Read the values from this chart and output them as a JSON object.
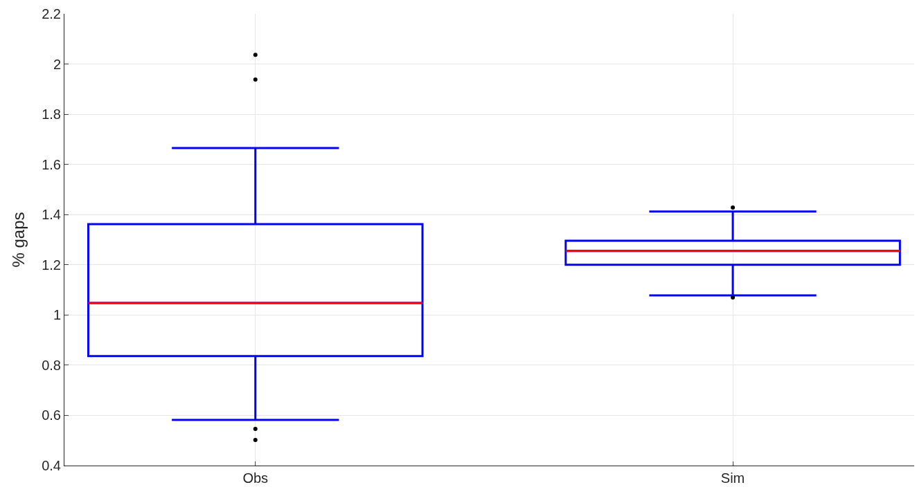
{
  "chart_data": {
    "type": "box",
    "ylabel": "% gaps",
    "categories": [
      "Obs",
      "Sim"
    ],
    "series": [
      {
        "color": "#0000ff",
        "boxes": [
          {
            "low": 0.582,
            "q1": 0.836,
            "median": 1.048,
            "q3": 1.362,
            "high": 1.665,
            "outliers": [
              2.037,
              1.938,
              0.546,
              0.502
            ]
          },
          {
            "low": 1.078,
            "q1": 1.2,
            "median": 1.255,
            "q3": 1.296,
            "high": 1.412,
            "outliers": [
              1.428,
              1.07
            ]
          }
        ]
      }
    ],
    "ylim": [
      0.4,
      2.2
    ],
    "yticks": [
      0.4,
      0.6,
      0.8,
      1,
      1.2,
      1.4,
      1.6,
      1.8,
      2,
      2.2
    ],
    "grid": true
  }
}
